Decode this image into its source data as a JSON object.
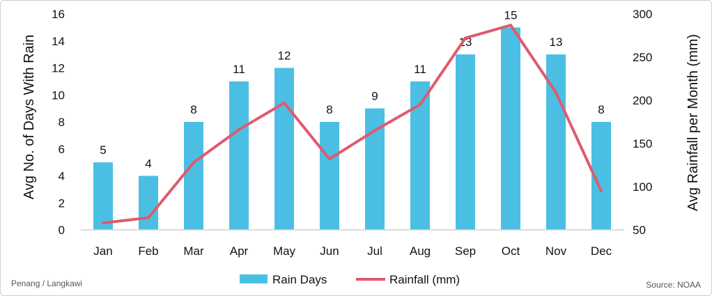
{
  "chart_data": {
    "type": "bar+line",
    "categories": [
      "Jan",
      "Feb",
      "Mar",
      "Apr",
      "May",
      "Jun",
      "Jul",
      "Aug",
      "Sep",
      "Oct",
      "Nov",
      "Dec"
    ],
    "series": [
      {
        "name": "Rain Days",
        "type": "bar",
        "axis": "left",
        "color": "#4bbfe3",
        "values": [
          5,
          4,
          8,
          11,
          12,
          8,
          9,
          11,
          13,
          15,
          13,
          8
        ]
      },
      {
        "name": "Rainfall (mm)",
        "type": "line",
        "axis": "right",
        "color": "#e05a6e",
        "values": [
          58,
          64,
          128,
          166,
          197,
          132,
          165,
          195,
          272,
          287,
          209,
          95
        ]
      }
    ],
    "ylabel": "Avg No. of Days With Rain",
    "ylabel_right": "Avg Rainfall per Month (mm)",
    "ylim": [
      0,
      16
    ],
    "ylim_right": [
      50,
      300
    ],
    "yticks": [
      "0",
      "2",
      "4",
      "6",
      "8",
      "10",
      "12",
      "14",
      "16"
    ],
    "yticks_right": [
      "50",
      "100",
      "150",
      "200",
      "250",
      "300"
    ],
    "data_labels": [
      "5",
      "4",
      "8",
      "11",
      "12",
      "8",
      "9",
      "11",
      "13",
      "15",
      "13",
      "8"
    ],
    "grid": false,
    "legend": "bottom"
  },
  "footer": {
    "left": "Penang / Langkawi",
    "right": "Source: NOAA"
  }
}
